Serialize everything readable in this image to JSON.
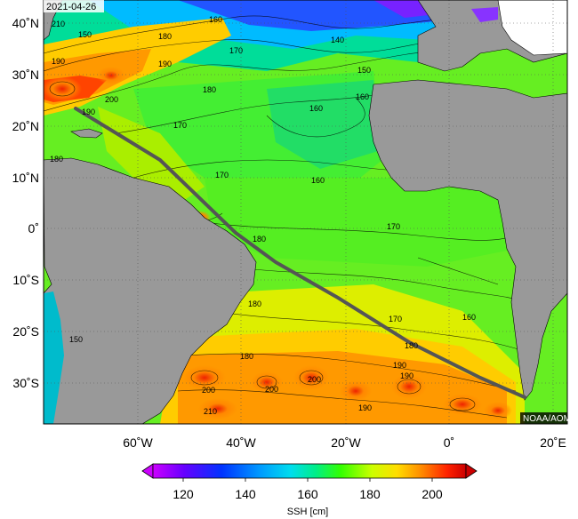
{
  "map": {
    "date": "2021-04-26",
    "credit": "NOAA/AOML",
    "lat_labels": [
      "40˚N",
      "30˚N",
      "20˚N",
      "10˚N",
      "0˚",
      "10˚S",
      "20˚S",
      "30˚S"
    ],
    "lon_labels": [
      "60˚W",
      "40˚W",
      "20˚W",
      "0˚",
      "20˚E"
    ],
    "contour_labels": [
      "210",
      "150",
      "180",
      "190",
      "200",
      "190",
      "170",
      "160",
      "140",
      "150",
      "180",
      "160",
      "190",
      "180",
      "170",
      "160",
      "170",
      "180",
      "170",
      "160",
      "180",
      "150",
      "180",
      "190",
      "200",
      "200",
      "200",
      "210",
      "190",
      "180",
      "190",
      "170",
      "160"
    ]
  },
  "colorbar": {
    "ticks": [
      "120",
      "140",
      "160",
      "180",
      "200"
    ],
    "label": "SSH [cm]"
  },
  "colors": {
    "land": "#999999",
    "low": "#cc00ff",
    "high": "#cc0000"
  }
}
